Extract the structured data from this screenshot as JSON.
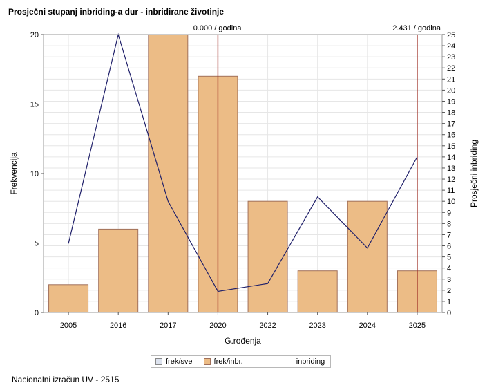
{
  "title": "Prosječni stupanj inbriding-a dur - inbridirane životinje",
  "footer": "Nacionalni izračun UV - 2515",
  "colors": {
    "bar_fill": "#ecbc86",
    "bar_stroke": "#a1705a",
    "line": "#20206a",
    "refline": "#a03228",
    "grid": "#e6e6e6",
    "legend_frek_sve": "#dde3ef"
  },
  "legend": {
    "frek_sve": "frek/sve",
    "frek_inbr": "frek/inbr.",
    "inbriding": "inbriding"
  },
  "chart_data": {
    "type": "bar",
    "xlabel": "G.rođenja",
    "ylabel": "Frekvencija",
    "y2label": "Prosječni inbriding",
    "categories": [
      "2005",
      "2016",
      "2017",
      "2020",
      "2022",
      "2023",
      "2024",
      "2025"
    ],
    "series": [
      {
        "name": "frek/inbr.",
        "type": "bar",
        "axis": "left",
        "values": [
          2,
          6,
          20,
          17,
          8,
          3,
          8,
          3
        ]
      },
      {
        "name": "inbriding",
        "type": "line",
        "axis": "right",
        "values": [
          6.2,
          25,
          10,
          1.9,
          2.6,
          10.4,
          5.8,
          14
        ]
      }
    ],
    "ylim": [
      0,
      20
    ],
    "yticks": [
      0,
      5,
      10,
      15,
      20
    ],
    "y2lim": [
      0,
      25
    ],
    "y2ticks": [
      0,
      1,
      2,
      3,
      4,
      5,
      6,
      7,
      8,
      9,
      10,
      11,
      12,
      13,
      14,
      15,
      16,
      17,
      18,
      19,
      20,
      21,
      22,
      23,
      24,
      25
    ],
    "reference_lines": [
      {
        "category": "2020",
        "label": "0.000 / godina"
      },
      {
        "category": "2025",
        "label": "2.431 / godina"
      }
    ],
    "grid": true
  }
}
